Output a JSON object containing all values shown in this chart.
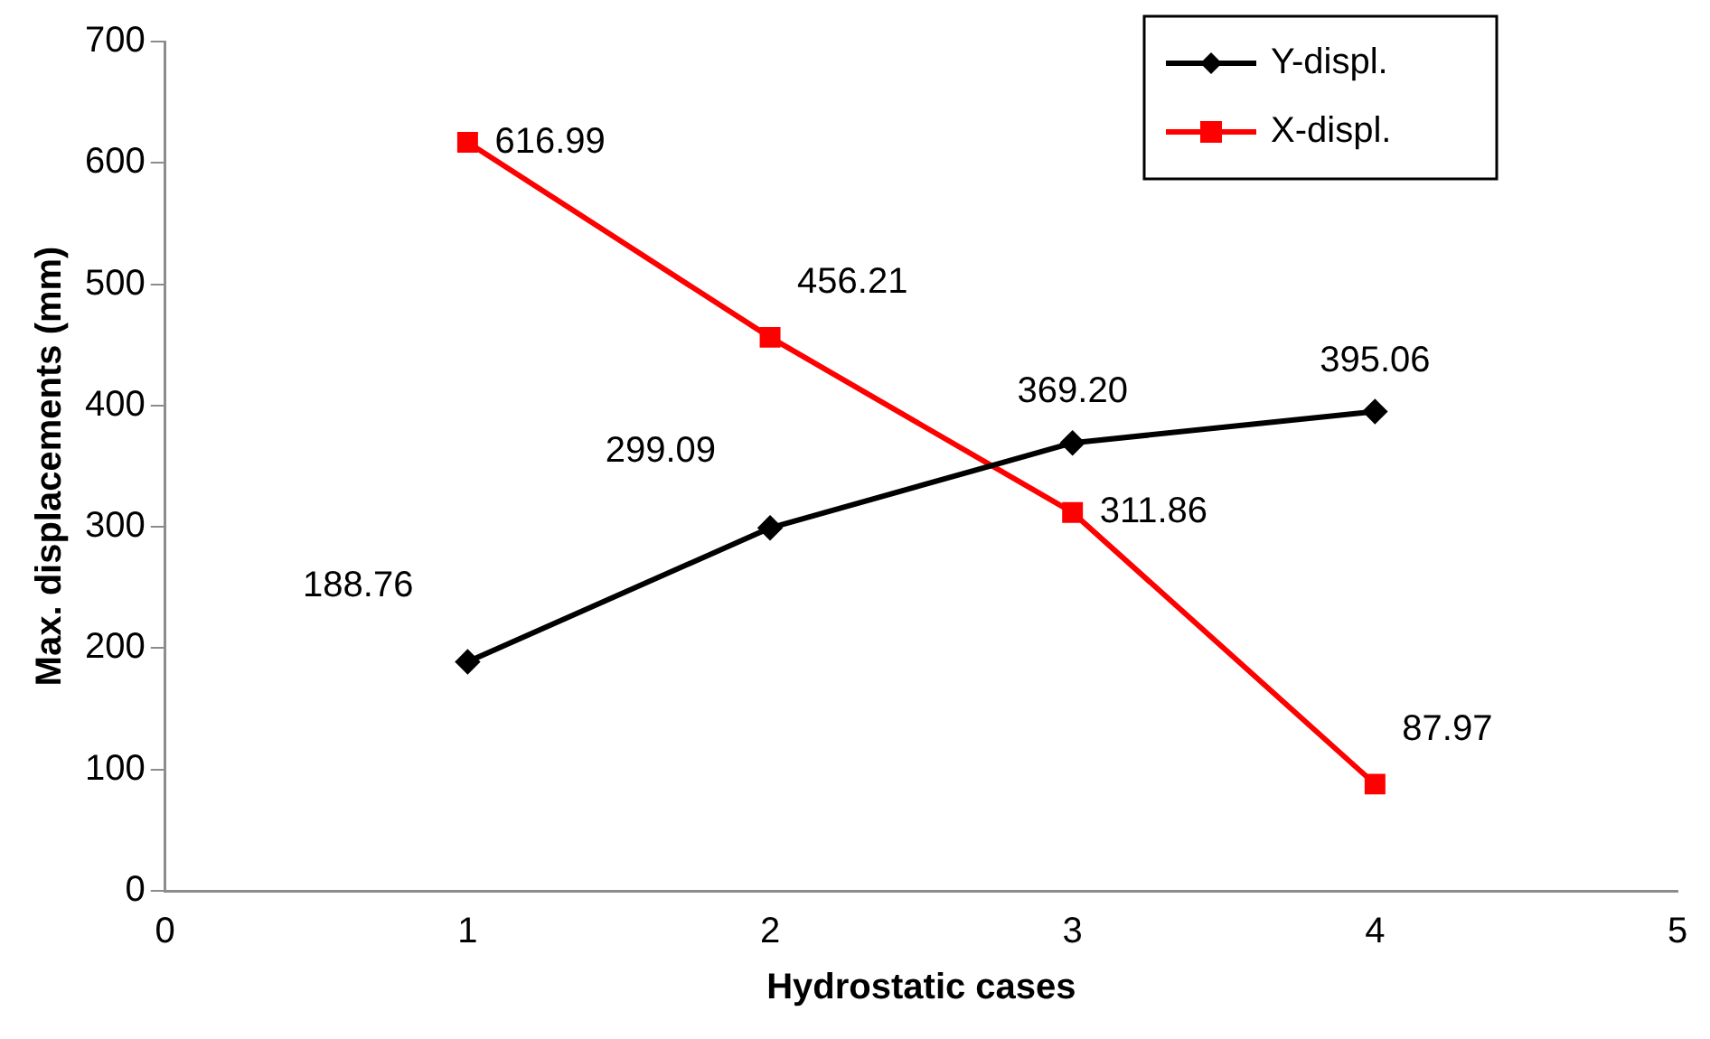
{
  "chart_data": {
    "type": "line",
    "xlabel": "Hydrostatic cases",
    "ylabel": "Max. displacements (mm)",
    "xlim": [
      0,
      5
    ],
    "xticks": [
      0,
      1,
      2,
      3,
      4,
      5
    ],
    "ylim": [
      0,
      700
    ],
    "yticks": [
      0,
      100,
      200,
      300,
      400,
      500,
      600,
      700
    ],
    "grid": false,
    "legend": "top right",
    "series": [
      {
        "name": "Y-displ.",
        "color": "#000000",
        "marker": "diamond",
        "x": [
          1,
          2,
          3,
          4
        ],
        "values": [
          188.76,
          299.09,
          369.2,
          395.06
        ],
        "value_labels": [
          "188.76",
          "299.09",
          "369.20",
          "395.06"
        ]
      },
      {
        "name": "X-displ.",
        "color": "#ff0000",
        "marker": "square",
        "x": [
          1,
          2,
          3,
          4
        ],
        "values": [
          616.99,
          456.21,
          311.86,
          87.97
        ],
        "value_labels": [
          "616.99",
          "456.21",
          "311.86",
          "87.97"
        ]
      }
    ]
  }
}
